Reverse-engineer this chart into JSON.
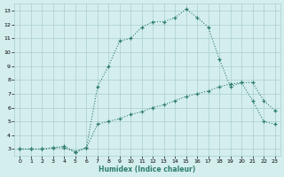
{
  "xlabel": "Humidex (Indice chaleur)",
  "line1_x": [
    0,
    1,
    2,
    3,
    4,
    5,
    6,
    7,
    8,
    9,
    10,
    11,
    12,
    13,
    14,
    15,
    16,
    17,
    18,
    19,
    20,
    21,
    22,
    23
  ],
  "line1_y": [
    3.0,
    3.0,
    3.0,
    3.1,
    3.2,
    2.8,
    3.1,
    4.8,
    5.0,
    5.2,
    5.5,
    5.7,
    6.0,
    6.2,
    6.5,
    6.8,
    7.0,
    7.2,
    7.5,
    7.7,
    7.8,
    6.5,
    5.0,
    4.8
  ],
  "line2_x": [
    0,
    1,
    2,
    3,
    4,
    5,
    6,
    7,
    8,
    9,
    10,
    11,
    12,
    13,
    14,
    15,
    16,
    17,
    18,
    19,
    20,
    21,
    22,
    23
  ],
  "line2_y": [
    3.0,
    3.0,
    3.0,
    3.1,
    3.1,
    2.8,
    3.1,
    7.5,
    9.0,
    10.8,
    11.0,
    11.8,
    12.2,
    12.2,
    12.5,
    13.1,
    12.5,
    11.8,
    9.5,
    7.5,
    7.8,
    7.8,
    6.5,
    5.8
  ],
  "line_color": "#2e7d6e",
  "bg_color": "#d4eeee",
  "grid_color": "#aacece",
  "xlim": [
    -0.5,
    23.5
  ],
  "ylim": [
    2.5,
    13.5
  ],
  "yticks": [
    3,
    4,
    5,
    6,
    7,
    8,
    9,
    10,
    11,
    12,
    13
  ],
  "xticks": [
    0,
    1,
    2,
    3,
    4,
    5,
    6,
    7,
    8,
    9,
    10,
    11,
    12,
    13,
    14,
    15,
    16,
    17,
    18,
    19,
    20,
    21,
    22,
    23
  ]
}
